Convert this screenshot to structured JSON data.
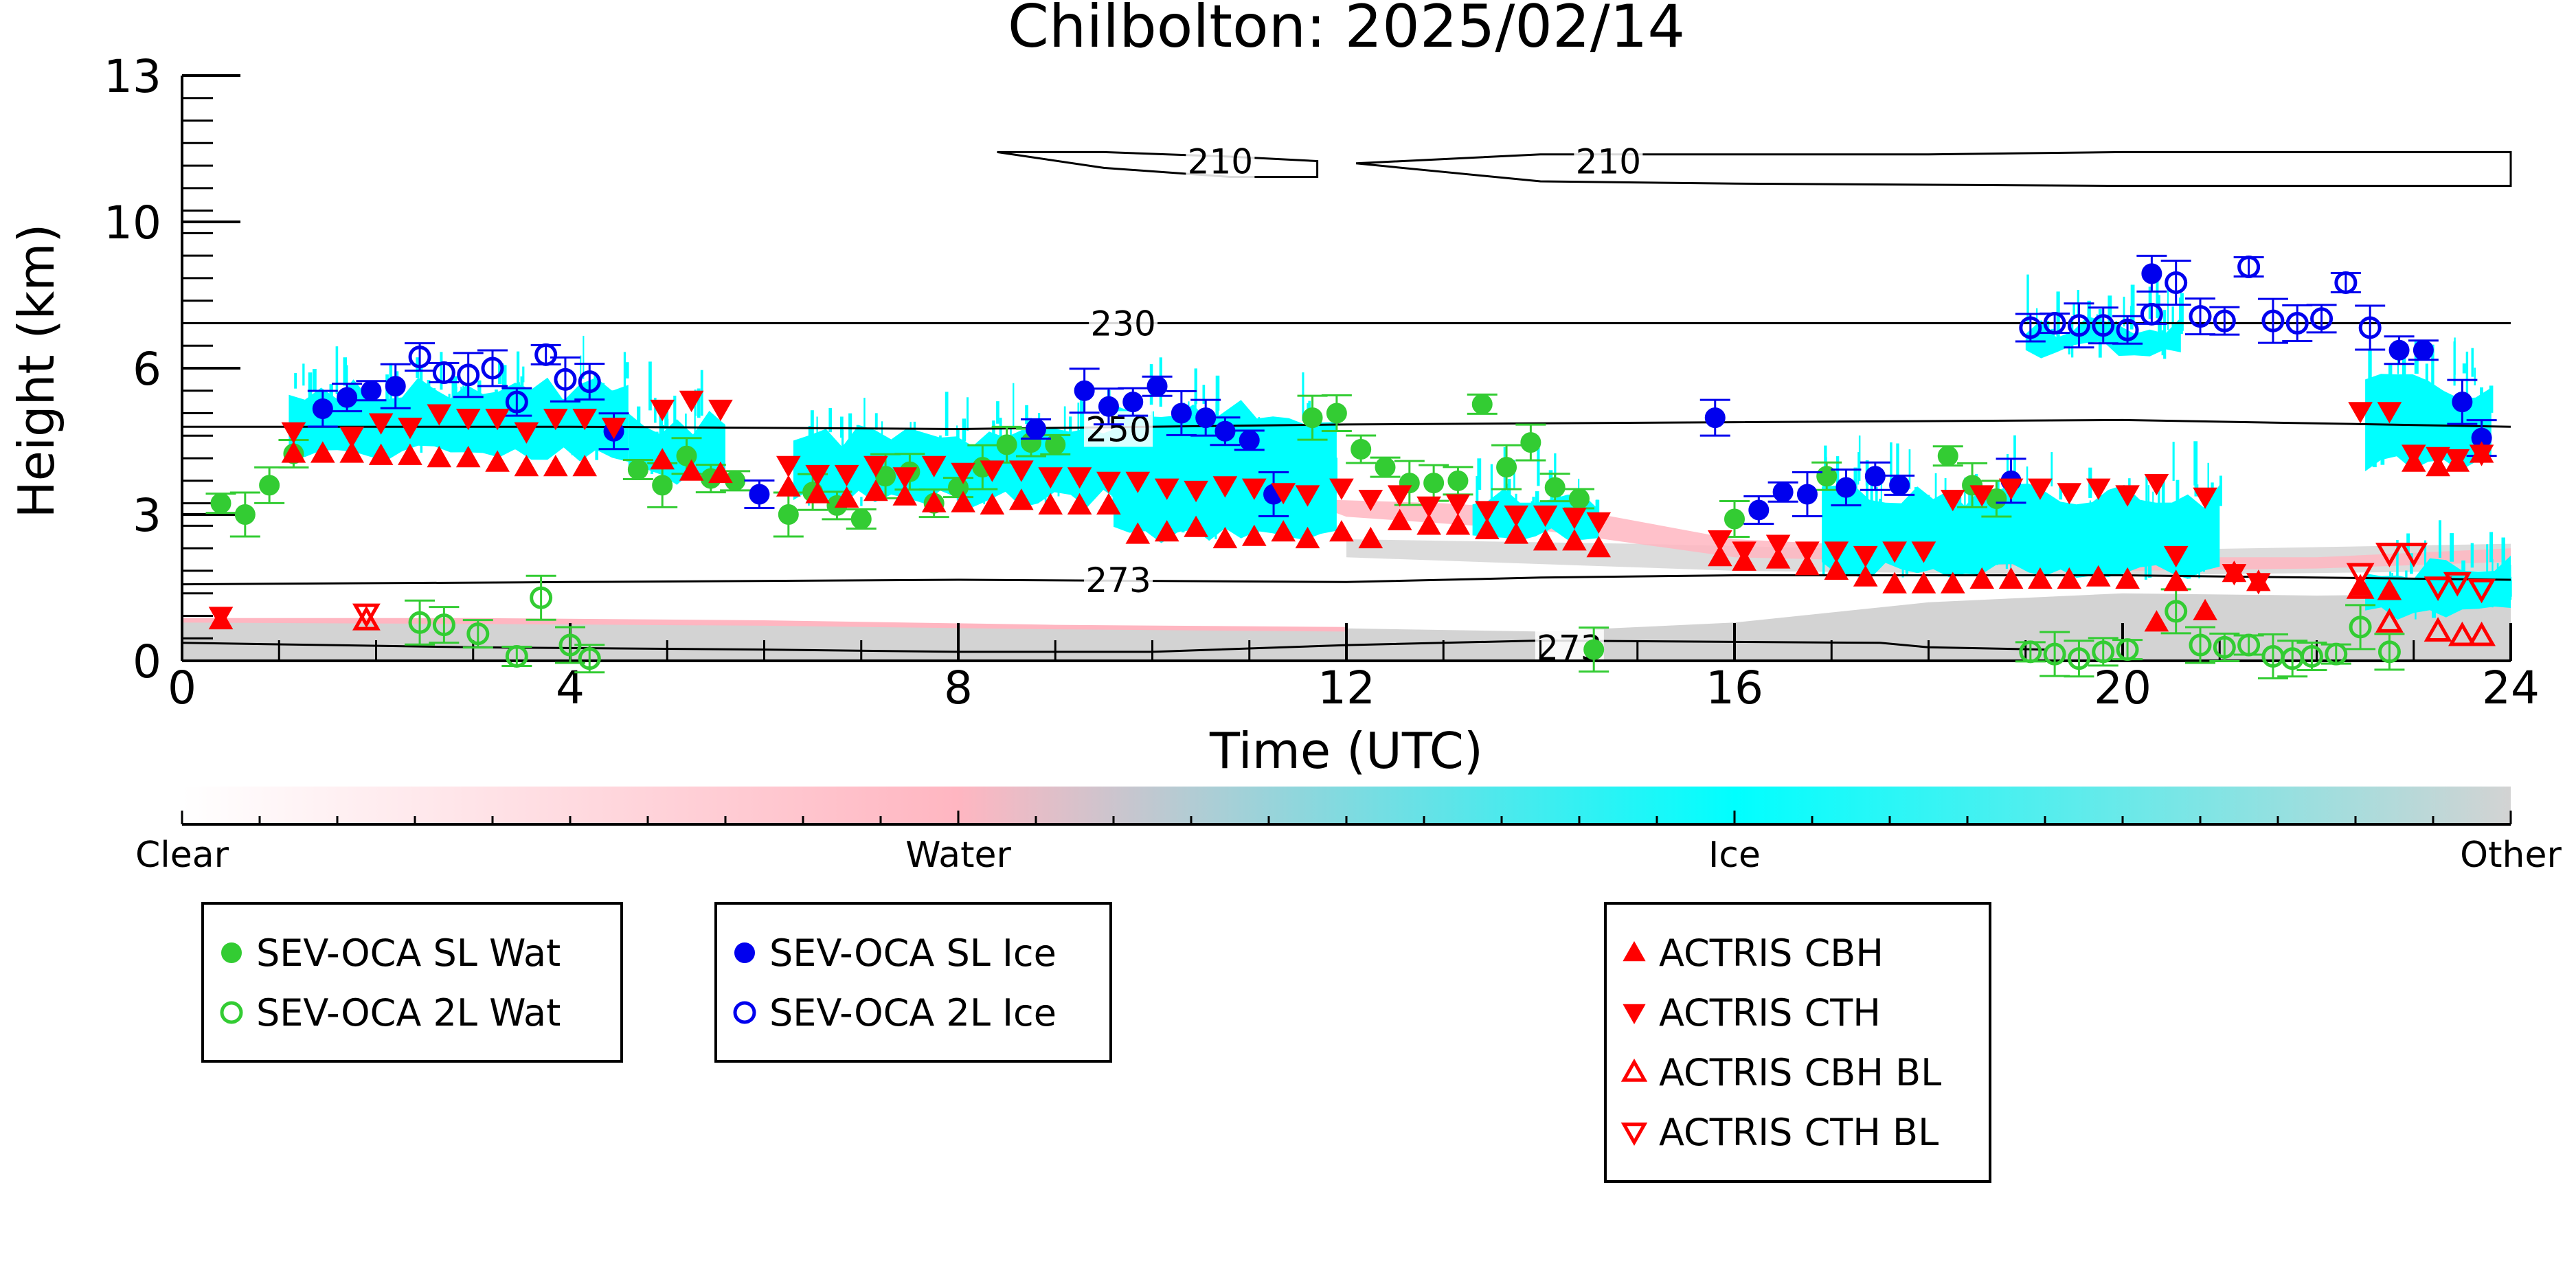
{
  "chart_data": {
    "type": "scatter",
    "title": "Chilbolton: 2025/02/14",
    "xlabel": "Time (UTC)",
    "ylabel": "Height (km)",
    "xlim": [
      0,
      24
    ],
    "ylim": [
      0,
      13
    ],
    "xticks": [
      0,
      4,
      8,
      12,
      16,
      20,
      24
    ],
    "yticks": [
      0,
      3,
      6,
      10,
      13
    ],
    "ytick_pos": [
      0,
      3.25,
      6.5,
      9.75,
      13
    ],
    "contours": [
      {
        "label": "210",
        "level": 210
      },
      {
        "label": "230",
        "level": 230
      },
      {
        "label": "250",
        "level": 250
      },
      {
        "label": "273",
        "level": 273
      }
    ],
    "colorbar": {
      "labels": [
        "Clear",
        "Water",
        "Ice",
        "Other"
      ],
      "colors": [
        "#ffffff",
        "#ffb6c1",
        "#00ffff",
        "#d3d3d3"
      ]
    },
    "legends": [
      {
        "entries": [
          {
            "label": "SEV-OCA SL Wat",
            "marker": "circle-filled",
            "color": "#33cc33"
          },
          {
            "label": "SEV-OCA 2L Wat",
            "marker": "circle-open",
            "color": "#33cc33"
          }
        ]
      },
      {
        "entries": [
          {
            "label": "SEV-OCA SL Ice",
            "marker": "circle-filled",
            "color": "#0000ee"
          },
          {
            "label": "SEV-OCA 2L Ice",
            "marker": "circle-open",
            "color": "#0000ee"
          }
        ]
      },
      {
        "entries": [
          {
            "label": "ACTRIS CBH",
            "marker": "tri-up-filled",
            "color": "#ff0000"
          },
          {
            "label": "ACTRIS CTH",
            "marker": "tri-down-filled",
            "color": "#ff0000"
          },
          {
            "label": "ACTRIS CBH BL",
            "marker": "tri-up-open",
            "color": "#ff0000"
          },
          {
            "label": "ACTRIS CTH BL",
            "marker": "tri-down-open",
            "color": "#ff0000"
          }
        ]
      }
    ],
    "series": [
      {
        "name": "SEV-OCA SL Wat",
        "color": "#33cc33",
        "x": [
          0.4,
          0.65,
          0.9,
          1.15,
          4.7,
          4.95,
          5.2,
          5.45,
          5.7,
          6.25,
          6.5,
          6.75,
          7.0,
          7.25,
          7.5,
          7.75,
          8.0,
          8.25,
          8.5,
          8.75,
          9.0,
          11.65,
          11.9,
          12.15,
          12.4,
          12.65,
          12.9,
          13.15,
          13.4,
          13.65,
          13.9,
          14.15,
          14.4,
          14.55,
          16.0,
          16.95,
          18.2,
          18.45,
          18.7
        ],
        "y": [
          3.5,
          3.25,
          3.9,
          4.6,
          4.25,
          3.9,
          4.55,
          4.05,
          4.0,
          3.25,
          3.75,
          3.45,
          3.15,
          4.1,
          4.2,
          3.5,
          3.85,
          4.3,
          4.8,
          4.85,
          4.8,
          5.4,
          5.5,
          4.7,
          4.3,
          3.95,
          3.95,
          4.0,
          5.7,
          4.3,
          4.85,
          3.85,
          3.6,
          0.25,
          3.15,
          4.1,
          4.55,
          3.9,
          3.6
        ]
      },
      {
        "name": "SEV-OCA 2L Wat",
        "color": "#33cc33",
        "x": [
          2.45,
          2.7,
          3.05,
          3.45,
          3.7,
          4.0,
          4.2,
          19.05,
          19.3,
          19.55,
          19.8,
          20.05,
          20.55,
          20.8,
          21.05,
          21.3,
          21.55,
          21.75,
          21.95,
          22.2,
          22.45,
          22.75
        ],
        "y": [
          0.85,
          0.8,
          0.6,
          0.1,
          1.4,
          0.35,
          0.05,
          0.2,
          0.15,
          0.05,
          0.2,
          0.25,
          1.1,
          0.35,
          0.3,
          0.35,
          0.1,
          0.05,
          0.1,
          0.15,
          0.75,
          0.2
        ]
      },
      {
        "name": "SEV-OCA SL Ice",
        "color": "#0000ee",
        "x": [
          1.45,
          1.7,
          1.95,
          2.2,
          4.45,
          5.95,
          8.8,
          9.3,
          9.55,
          9.8,
          10.05,
          10.3,
          10.55,
          10.75,
          11.0,
          11.25,
          15.8,
          16.25,
          16.5,
          16.75,
          17.15,
          17.45,
          17.7,
          18.85,
          20.3,
          22.85,
          23.1,
          23.5,
          23.7
        ],
        "y": [
          5.6,
          5.85,
          6.0,
          6.1,
          5.1,
          3.7,
          5.15,
          6.0,
          5.65,
          5.75,
          6.1,
          5.5,
          5.4,
          5.1,
          4.9,
          3.7,
          5.4,
          3.35,
          3.75,
          3.7,
          3.85,
          4.1,
          3.9,
          4.0,
          8.6,
          6.9,
          6.9,
          5.75,
          4.95
        ]
      },
      {
        "name": "SEV-OCA 2L Ice",
        "color": "#0000ee",
        "x": [
          2.45,
          2.7,
          2.95,
          3.2,
          3.45,
          3.75,
          3.95,
          4.2,
          19.05,
          19.3,
          19.55,
          19.8,
          20.05,
          20.3,
          20.55,
          20.8,
          21.05,
          21.3,
          21.55,
          21.8,
          22.05,
          22.3,
          22.55
        ],
        "y": [
          6.75,
          6.4,
          6.35,
          6.5,
          5.75,
          6.8,
          6.25,
          6.2,
          7.4,
          7.5,
          7.45,
          7.45,
          7.35,
          7.7,
          8.4,
          7.65,
          7.55,
          8.75,
          7.55,
          7.5,
          7.6,
          8.4,
          7.4
        ]
      },
      {
        "name": "ACTRIS CBH",
        "color": "#ff0000",
        "x": [
          0.4,
          1.15,
          1.45,
          1.75,
          2.05,
          2.35,
          2.65,
          2.95,
          3.25,
          3.55,
          3.85,
          4.15,
          4.95,
          5.25,
          5.55,
          6.25,
          6.55,
          6.85,
          7.15,
          7.45,
          7.75,
          8.05,
          8.35,
          8.65,
          8.95,
          9.25,
          9.55,
          9.85,
          10.15,
          10.45,
          10.75,
          11.05,
          11.35,
          11.6,
          11.95,
          12.25,
          12.55,
          12.85,
          13.15,
          13.45,
          13.75,
          14.05,
          14.35,
          14.6,
          15.85,
          16.1,
          16.45,
          16.75,
          17.05,
          17.35,
          17.65,
          17.95,
          18.25,
          18.55,
          18.85,
          19.15,
          19.45,
          19.75,
          20.05,
          20.35,
          20.55,
          20.85,
          21.15,
          21.4,
          22.45,
          22.75,
          23.0,
          23.25,
          23.45,
          23.7
        ],
        "y": [
          0.9,
          4.6,
          4.6,
          4.6,
          4.55,
          4.55,
          4.5,
          4.5,
          4.4,
          4.3,
          4.3,
          4.3,
          4.45,
          4.2,
          4.15,
          3.85,
          3.7,
          3.6,
          3.75,
          3.65,
          3.5,
          3.5,
          3.45,
          3.55,
          3.45,
          3.45,
          3.45,
          2.8,
          2.85,
          2.95,
          2.7,
          2.75,
          2.85,
          2.7,
          2.85,
          2.7,
          3.1,
          3.0,
          3.0,
          2.9,
          2.8,
          2.65,
          2.65,
          2.5,
          2.3,
          2.2,
          2.25,
          2.1,
          2.0,
          1.85,
          1.7,
          1.7,
          1.7,
          1.8,
          1.8,
          1.8,
          1.8,
          1.85,
          1.8,
          0.85,
          1.75,
          1.1,
          1.95,
          1.75,
          1.65,
          1.55,
          4.4,
          4.3,
          4.4,
          4.6
        ]
      },
      {
        "name": "ACTRIS CTH",
        "color": "#ff0000",
        "x": [
          0.4,
          1.15,
          1.75,
          2.05,
          2.35,
          2.65,
          2.95,
          3.25,
          3.55,
          3.85,
          4.15,
          4.45,
          4.95,
          5.25,
          5.55,
          6.25,
          6.55,
          6.85,
          7.15,
          7.45,
          7.75,
          8.05,
          8.35,
          8.65,
          8.95,
          9.25,
          9.55,
          9.85,
          10.15,
          10.45,
          10.75,
          11.05,
          11.35,
          11.6,
          11.95,
          12.25,
          12.55,
          12.85,
          13.15,
          13.45,
          13.75,
          14.05,
          14.35,
          14.6,
          15.85,
          16.1,
          16.45,
          16.75,
          17.05,
          17.35,
          17.65,
          17.95,
          18.25,
          18.55,
          18.85,
          19.15,
          19.45,
          19.75,
          20.05,
          20.35,
          20.55,
          20.85,
          21.15,
          21.4,
          22.45,
          22.75,
          23.0,
          23.25,
          23.45,
          23.7
        ],
        "y": [
          1.0,
          5.1,
          5.0,
          5.3,
          5.2,
          5.5,
          5.4,
          5.4,
          5.1,
          5.4,
          5.4,
          5.2,
          5.6,
          5.8,
          5.6,
          4.35,
          4.15,
          4.15,
          4.35,
          4.1,
          4.35,
          4.2,
          4.25,
          4.25,
          4.1,
          4.1,
          4.0,
          4.0,
          3.85,
          3.8,
          3.9,
          3.85,
          3.75,
          3.7,
          3.85,
          3.6,
          3.7,
          3.45,
          3.5,
          3.35,
          3.25,
          3.25,
          3.2,
          3.1,
          2.7,
          2.45,
          2.6,
          2.45,
          2.45,
          2.35,
          2.45,
          2.45,
          3.6,
          3.7,
          3.85,
          3.85,
          3.75,
          3.85,
          3.7,
          3.95,
          2.35,
          3.65,
          1.95,
          1.75,
          5.55,
          5.55,
          4.6,
          4.55,
          4.5,
          4.6
        ]
      },
      {
        "name": "ACTRIS CBH BL",
        "color": "#ff0000",
        "x": [
          1.9,
          22.45,
          22.75,
          23.25,
          23.5,
          23.7
        ],
        "y": [
          0.9,
          1.6,
          0.85,
          0.65,
          0.55,
          0.55
        ]
      },
      {
        "name": "ACTRIS CTH BL",
        "color": "#ff0000",
        "x": [
          1.9,
          22.45,
          22.75,
          23.0,
          23.25,
          23.45,
          23.7
        ],
        "y": [
          1.05,
          1.95,
          2.4,
          2.4,
          1.65,
          1.75,
          1.6
        ]
      }
    ]
  }
}
